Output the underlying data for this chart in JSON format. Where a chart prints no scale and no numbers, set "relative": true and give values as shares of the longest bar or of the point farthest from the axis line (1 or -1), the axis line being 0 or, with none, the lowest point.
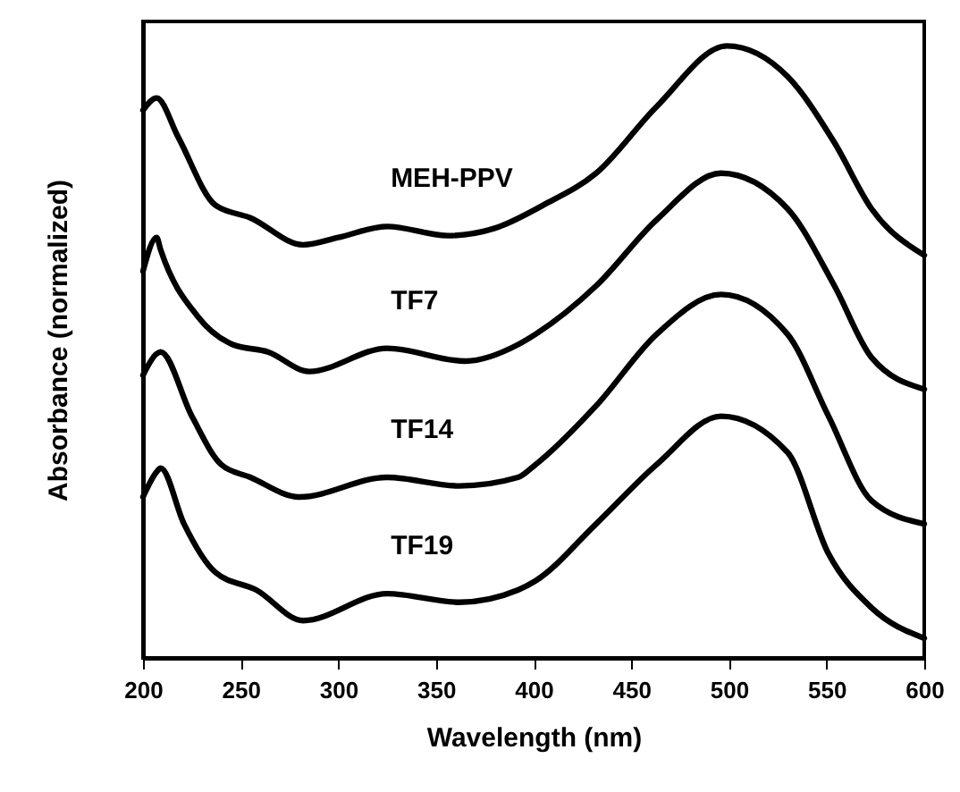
{
  "chart_data": {
    "type": "line",
    "relative": true,
    "xlabel": "Wavelength (nm)",
    "ylabel": "Absorbance (normalized)",
    "xlim": [
      200,
      600
    ],
    "xticks": [
      200,
      250,
      300,
      350,
      400,
      450,
      500,
      550,
      600
    ],
    "series": [
      {
        "name": "MEH-PPV",
        "color": "#000000",
        "x": [
          200,
          207,
          218,
          237,
          255,
          282,
          300,
          325,
          356,
          380,
          405,
          432,
          463,
          499,
          530,
          554,
          573,
          600
        ],
        "values": [
          0.895,
          0.915,
          0.851,
          0.74,
          0.719,
          0.675,
          0.687,
          0.705,
          0.69,
          0.702,
          0.74,
          0.792,
          0.901,
          1.0,
          0.95,
          0.842,
          0.734,
          0.658
        ]
      },
      {
        "name": "TF7",
        "color": "#000000",
        "x": [
          200,
          207,
          209,
          228,
          246,
          264,
          285,
          325,
          365,
          392,
          401,
          432,
          463,
          496,
          530,
          554,
          573,
          600
        ],
        "values": [
          0.632,
          0.687,
          0.667,
          0.558,
          0.512,
          0.5,
          0.468,
          0.506,
          0.485,
          0.512,
          0.529,
          0.608,
          0.716,
          0.792,
          0.734,
          0.608,
          0.491,
          0.439
        ]
      },
      {
        "name": "TF14",
        "color": "#000000",
        "x": [
          200,
          207,
          209,
          225,
          240,
          255,
          280,
          325,
          362,
          392,
          401,
          432,
          463,
          496,
          530,
          551,
          573,
          600
        ],
        "values": [
          0.462,
          0.497,
          0.5,
          0.395,
          0.316,
          0.295,
          0.263,
          0.295,
          0.281,
          0.295,
          0.316,
          0.412,
          0.529,
          0.594,
          0.529,
          0.395,
          0.257,
          0.219
        ]
      },
      {
        "name": "TF19",
        "color": "#000000",
        "x": [
          200,
          207,
          209,
          221,
          237,
          258,
          282,
          325,
          362,
          392,
          401,
          432,
          463,
          496,
          530,
          551,
          573,
          600
        ],
        "values": [
          0.263,
          0.304,
          0.31,
          0.219,
          0.14,
          0.111,
          0.061,
          0.105,
          0.091,
          0.111,
          0.126,
          0.219,
          0.316,
          0.395,
          0.336,
          0.17,
          0.082,
          0.032
        ]
      }
    ]
  }
}
